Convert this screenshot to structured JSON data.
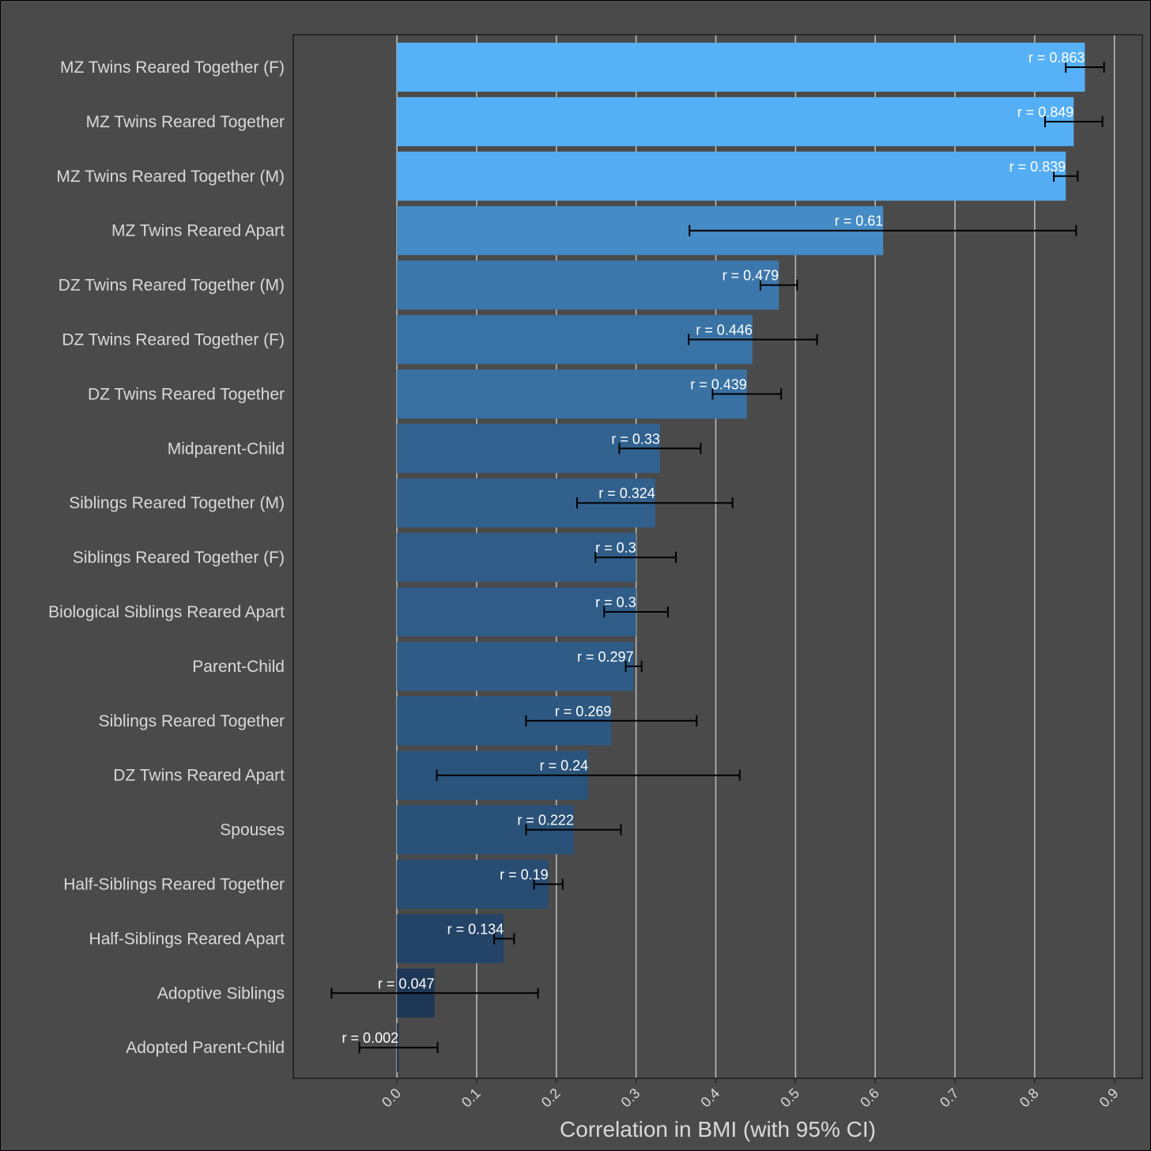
{
  "chart_data": {
    "type": "bar",
    "orientation": "horizontal",
    "xlabel": "Correlation in BMI (with 95% CI)",
    "xlim": [
      -0.13,
      0.935
    ],
    "x_ticks": [
      0.0,
      0.1,
      0.2,
      0.3,
      0.4,
      0.5,
      0.6,
      0.7,
      0.8,
      0.9
    ],
    "x_tick_labels": [
      "0.0",
      "0.1",
      "0.2",
      "0.3",
      "0.4",
      "0.5",
      "0.6",
      "0.7",
      "0.8",
      "0.9"
    ],
    "grid": "vertical",
    "color_low": "#1b304d",
    "color_high": "#56b1f7",
    "categories": [
      "MZ Twins Reared Together (F)",
      "MZ Twins Reared Together",
      "MZ Twins Reared Together (M)",
      "MZ Twins Reared Apart",
      "DZ Twins Reared Together (M)",
      "DZ Twins Reared Together (F)",
      "DZ Twins Reared Together",
      "Midparent-Child",
      "Siblings Reared Together (M)",
      "Siblings Reared Together (F)",
      "Biological Siblings Reared Apart",
      "Parent-Child",
      "Siblings Reared Together",
      "DZ Twins Reared Apart",
      "Spouses",
      "Half-Siblings Reared Together",
      "Half-Siblings Reared Apart",
      "Adoptive Siblings",
      "Adopted Parent-Child"
    ],
    "values": [
      0.863,
      0.849,
      0.839,
      0.61,
      0.479,
      0.446,
      0.439,
      0.33,
      0.324,
      0.3,
      0.3,
      0.297,
      0.269,
      0.24,
      0.222,
      0.19,
      0.134,
      0.047,
      0.002
    ],
    "value_labels": [
      "r = 0.863",
      "r = 0.849",
      "r = 0.839",
      "r = 0.61",
      "r = 0.479",
      "r = 0.446",
      "r = 0.439",
      "r = 0.33",
      "r = 0.324",
      "r = 0.3",
      "r = 0.3",
      "r = 0.297",
      "r = 0.269",
      "r = 0.24",
      "r = 0.222",
      "r = 0.19",
      "r = 0.134",
      "r = 0.047",
      "r = 0.002"
    ],
    "ci_lower": [
      0.839,
      0.813,
      0.824,
      0.367,
      0.456,
      0.366,
      0.396,
      0.279,
      0.226,
      0.249,
      0.26,
      0.287,
      0.162,
      0.05,
      0.162,
      0.172,
      0.122,
      -0.082,
      -0.047
    ],
    "ci_upper": [
      0.887,
      0.885,
      0.854,
      0.852,
      0.502,
      0.527,
      0.482,
      0.381,
      0.421,
      0.35,
      0.34,
      0.307,
      0.376,
      0.43,
      0.281,
      0.208,
      0.147,
      0.177,
      0.051
    ]
  }
}
